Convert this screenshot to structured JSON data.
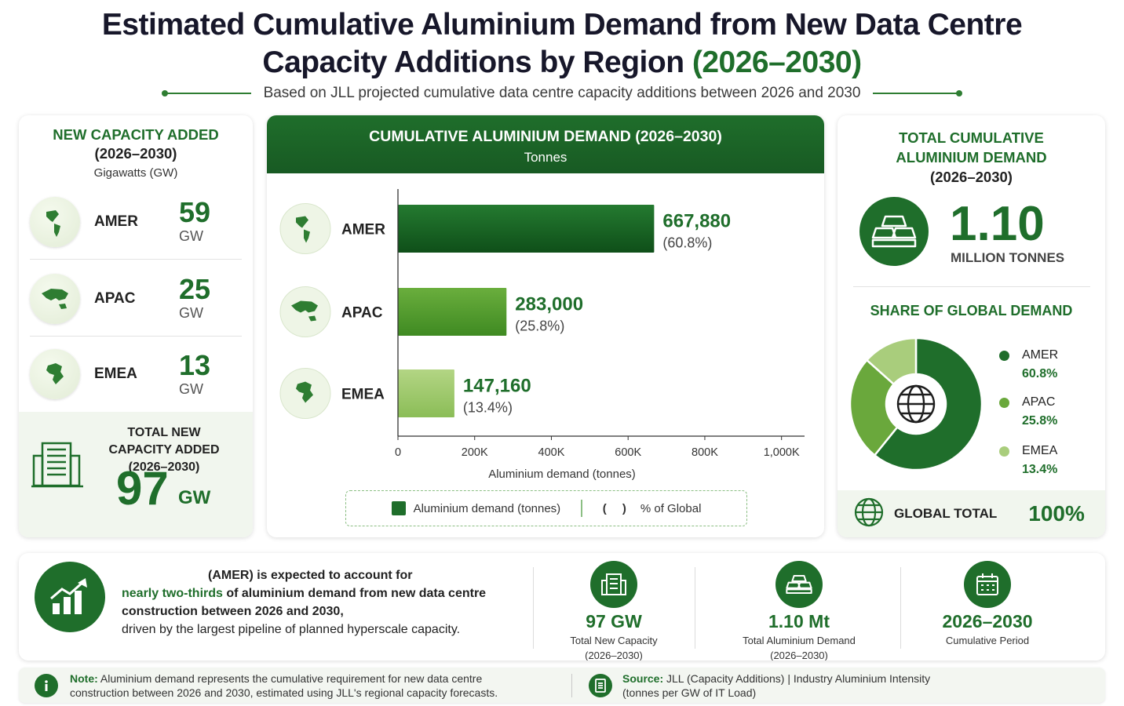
{
  "title": {
    "line1": "Estimated Cumulative Aluminium Demand from New Data Centre",
    "line2": "Capacity Additions by Region",
    "line2_highlight": "(2026–2030)"
  },
  "subtitle": "Based on JLL projected cumulative data centre capacity additions between 2026 and 2030",
  "capacity_card": {
    "heading1": "NEW CAPACITY ADDED",
    "heading2": "(2026–2030)",
    "heading3": "Gigawatts (GW)",
    "regions": [
      {
        "name": "AMER",
        "value": "59",
        "unit": "GW"
      },
      {
        "name": "APAC",
        "value": "25",
        "unit": "GW"
      },
      {
        "name": "EMEA",
        "value": "13",
        "unit": "GW"
      }
    ],
    "total_label": "TOTAL NEW CAPACITY ADDED (2026–2030)",
    "total_value": "97",
    "total_unit": "GW"
  },
  "demand_card": {
    "header": "CUMULATIVE ALUMINIUM DEMAND (2026–2030)",
    "subheader": "Tonnes",
    "legend_series": "Aluminium demand (tonnes)",
    "legend_parens": "( )",
    "legend_percent": "% of Global"
  },
  "total_card": {
    "heading_line1": "TOTAL CUMULATIVE",
    "heading_line2": "ALUMINIUM DEMAND",
    "heading_line3": "(2026–2030)",
    "big_value": "1.10",
    "big_unit": "MILLION TONNES",
    "share_heading": "SHARE OF GLOBAL DEMAND",
    "global_label": "GLOBAL TOTAL",
    "global_value": "100%"
  },
  "insight": {
    "part1": "(AMER) is expected to account for",
    "part2_highlight": "nearly two-thirds",
    "part3": " of aluminium demand from new data centre",
    "part4": "construction between 2026 and 2030,",
    "part5": "driven by the largest pipeline of planned hyperscale capacity."
  },
  "stats": [
    {
      "value": "97 GW",
      "label1": "Total New Capacity",
      "label2": "(2026–2030)",
      "icon": "building-icon"
    },
    {
      "value": "1.10 Mt",
      "label1": "Total Aluminium Demand",
      "label2": "(2026–2030)",
      "icon": "ingots-icon"
    },
    {
      "value": "2026–2030",
      "label1": "Cumulative Period",
      "label2": "",
      "icon": "calendar-icon"
    }
  ],
  "note": {
    "label": "Note:",
    "line1": " Aluminium demand represents the cumulative requirement for new data centre",
    "line2": "construction between 2026 and 2030, estimated using JLL's regional capacity forecasts."
  },
  "source": {
    "label": "Source:",
    "line1": " JLL (Capacity Additions)   |   Industry Aluminium Intensity",
    "line2": "(tonnes per GW of IT Load)"
  },
  "colors": {
    "primary": "#1f6e2b",
    "amer": "#1f6e2b",
    "apac": "#6aa83c",
    "emea": "#a9cd7c"
  },
  "chart_data": [
    {
      "type": "bar",
      "orientation": "horizontal",
      "title": "CUMULATIVE ALUMINIUM DEMAND (2026–2030)",
      "subtitle": "Tonnes",
      "xlabel": "Aluminium demand (tonnes)",
      "categories": [
        "AMER",
        "APAC",
        "EMEA"
      ],
      "values": [
        667880,
        283000,
        147160
      ],
      "value_labels": [
        "667,880",
        "283,000",
        "147,160"
      ],
      "percent_labels": [
        "(60.8%)",
        "(25.8%)",
        "(13.4%)"
      ],
      "xlim": [
        0,
        1060000
      ],
      "xticks": [
        0,
        200000,
        400000,
        600000,
        800000,
        1000000
      ],
      "xtick_labels": [
        "0",
        "200K",
        "400K",
        "600K",
        "800K",
        "1,000K"
      ],
      "grid": false
    },
    {
      "type": "pie",
      "donut": true,
      "title": "SHARE OF GLOBAL DEMAND",
      "labels": [
        "AMER",
        "APAC",
        "EMEA"
      ],
      "values": [
        60.8,
        25.8,
        13.4
      ],
      "value_labels": [
        "60.8%",
        "25.8%",
        "13.4%"
      ],
      "legend": "right"
    }
  ]
}
